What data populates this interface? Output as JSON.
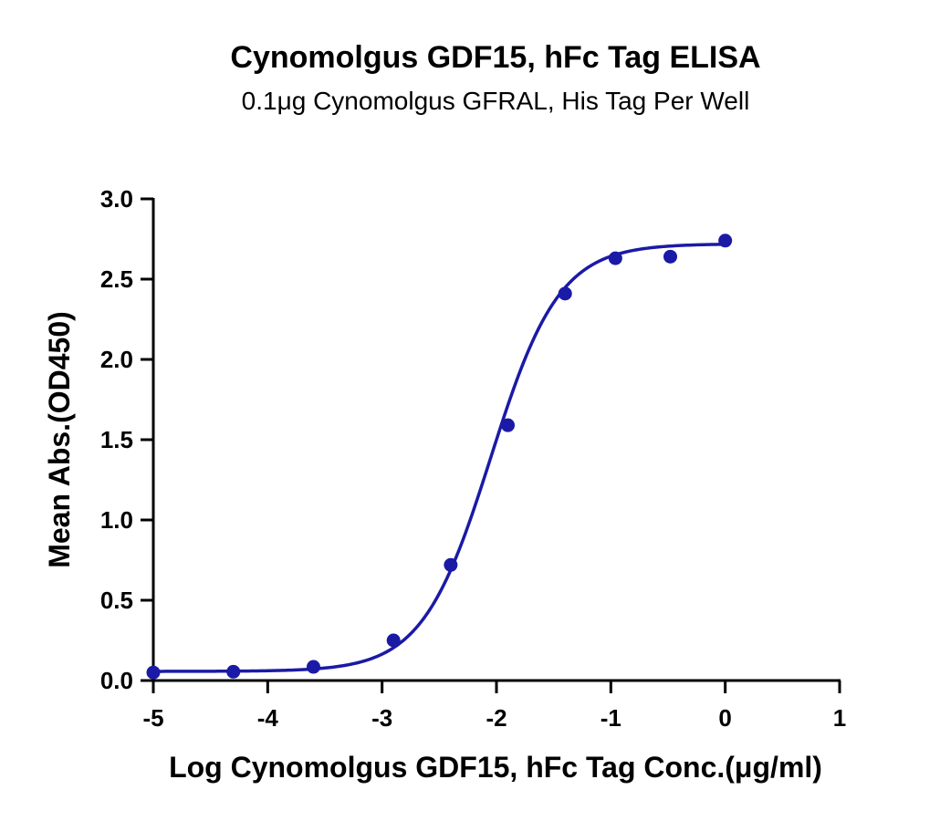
{
  "chart_data": {
    "type": "scatter",
    "title": "Cynomolgus GDF15, hFc Tag ELISA",
    "subtitle": "0.1μg Cynomolgus GFRAL, His Tag Per Well",
    "xlabel": "Log Cynomolgus GDF15, hFc Tag Conc.(μg/ml)",
    "ylabel": "Mean Abs.(OD450)",
    "xlim": [
      -5,
      1
    ],
    "ylim": [
      0,
      3
    ],
    "xticks": [
      "-5",
      "-4",
      "-3",
      "-2",
      "-1",
      "0",
      "1"
    ],
    "yticks": [
      "0.0",
      "0.5",
      "1.0",
      "1.5",
      "2.0",
      "2.5",
      "3.0"
    ],
    "grid": false,
    "series": [
      {
        "color": "#1a1aa6",
        "x": [
          -5.0,
          -4.3,
          -3.6,
          -2.9,
          -2.4,
          -1.9,
          -1.4,
          -0.96,
          -0.48,
          0.0
        ],
        "y": [
          0.05,
          0.055,
          0.085,
          0.25,
          0.72,
          1.59,
          2.41,
          2.63,
          2.64,
          2.74
        ]
      }
    ],
    "fit_curve": {
      "color": "#1a1aa6",
      "bottom": 0.057,
      "top": 2.72,
      "logEC50": -2.05,
      "hill_slope": 1.45
    }
  }
}
